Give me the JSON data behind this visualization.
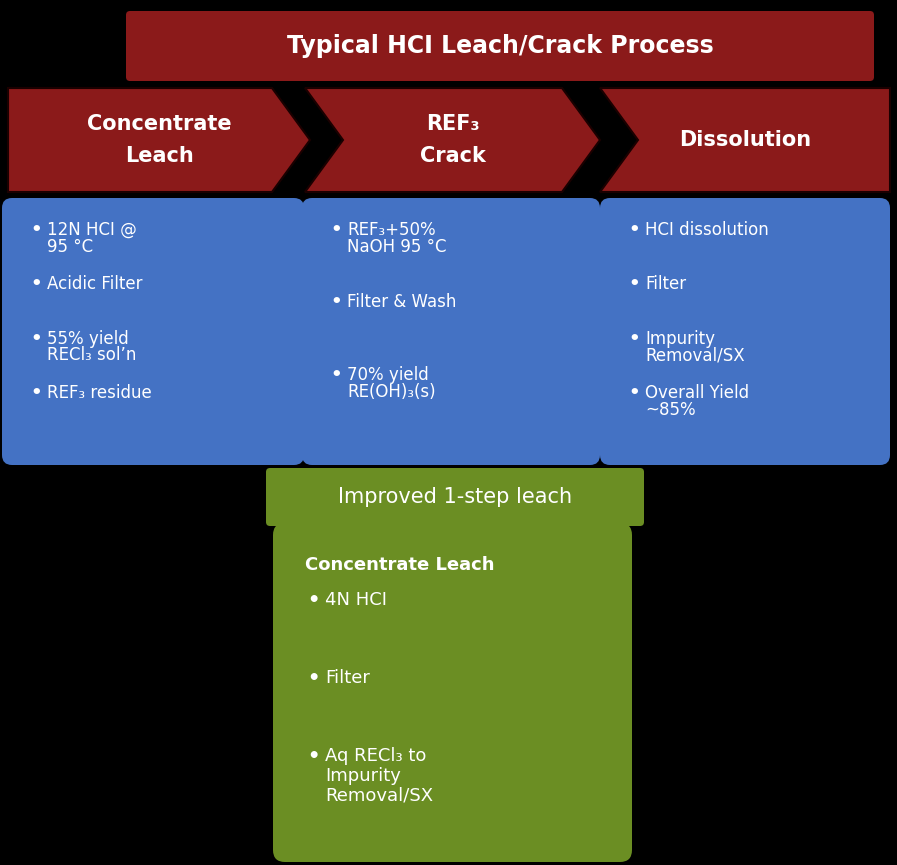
{
  "bg_color": "#000000",
  "title_text": "Typical HCI Leach/Crack Process",
  "title_bg": "#8B1A1A",
  "title_text_color": "#FFFFFF",
  "arrow_color": "#8B1A1A",
  "arrow_labels": [
    "Concentrate\nLeach",
    "REF₃\nCrack",
    "Dissolution"
  ],
  "blue_color": "#4472C4",
  "blue_edge": "#5588DD",
  "box1_bullets": [
    [
      "12N HCI @ ",
      "95 °C"
    ],
    [
      "Acidic Filter"
    ],
    [
      "55% yield ",
      "RECl₃ sol’n"
    ],
    [
      "REF₃ residue"
    ]
  ],
  "box2_bullets": [
    [
      "REF₃+50%",
      "NaOH 95 °C"
    ],
    [
      "Filter & Wash"
    ],
    [
      "70% yield ",
      "RE(OH)₃(s)"
    ]
  ],
  "box3_bullets": [
    [
      "HCI dissolution"
    ],
    [
      "Filter"
    ],
    [
      "Impurity",
      "Removal/SX"
    ],
    [
      "Overall Yield",
      "~85%"
    ]
  ],
  "improved_label": "Improved 1-step leach",
  "improved_bg": "#6B8E23",
  "improved_title": "Concentrate Leach",
  "improved_bullets": [
    [
      "4N HCI"
    ],
    [
      "Filter"
    ],
    [
      "Aq RECl₃ to",
      "Impurity",
      "Removal/SX"
    ]
  ]
}
